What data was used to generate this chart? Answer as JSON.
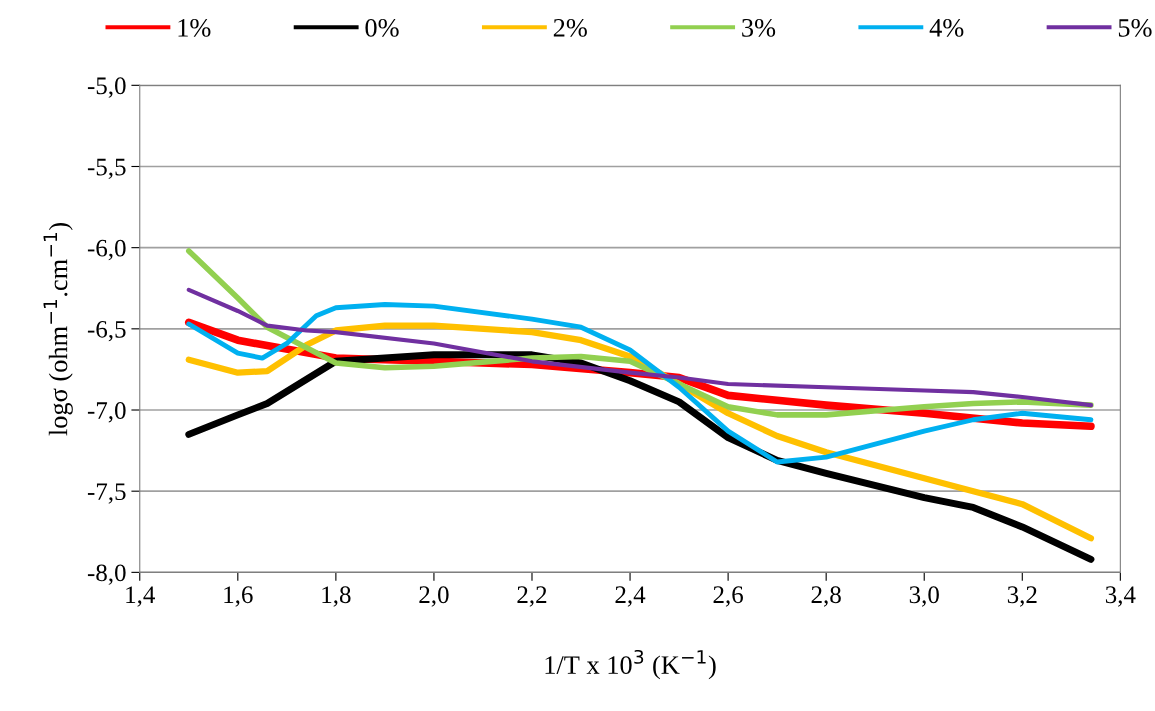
{
  "chart_data": {
    "type": "line",
    "xlabel": "1/T x 10$^{3}$ (K$^{−1}$)",
    "ylabel": "logσ (ohm$^{−1}$.cm$^{−1}$)",
    "xlim": [
      1.4,
      3.4
    ],
    "ylim": [
      -8.0,
      -5.0
    ],
    "xticks": [
      {
        "value": 1.4,
        "label": "1,4"
      },
      {
        "value": 1.6,
        "label": "1,6"
      },
      {
        "value": 1.8,
        "label": "1,8"
      },
      {
        "value": 2.0,
        "label": "2,0"
      },
      {
        "value": 2.2,
        "label": "2,2"
      },
      {
        "value": 2.4,
        "label": "2,4"
      },
      {
        "value": 2.6,
        "label": "2,6"
      },
      {
        "value": 2.8,
        "label": "2,8"
      },
      {
        "value": 3.0,
        "label": "3,0"
      },
      {
        "value": 3.2,
        "label": "3,2"
      },
      {
        "value": 3.4,
        "label": "3,4"
      }
    ],
    "yticks": [
      {
        "value": -8.0,
        "label": "-8,0"
      },
      {
        "value": -7.5,
        "label": "-7,5"
      },
      {
        "value": -7.0,
        "label": "-7,0"
      },
      {
        "value": -6.5,
        "label": "-6,5"
      },
      {
        "value": -6.0,
        "label": "-6,0"
      },
      {
        "value": -5.5,
        "label": "-5,5"
      },
      {
        "value": -5.0,
        "label": "-5,0"
      }
    ],
    "grid": "y",
    "legend": "top",
    "marker": "none",
    "line_style": "solid",
    "series": [
      {
        "name": "1%",
        "color": "#ff0000",
        "x": [
          1.5,
          1.6,
          1.8,
          2.0,
          2.2,
          2.4,
          2.5,
          2.6,
          2.8,
          3.0,
          3.2,
          3.34
        ],
        "values": [
          -6.46,
          -6.57,
          -6.68,
          -6.7,
          -6.72,
          -6.77,
          -6.8,
          -6.91,
          -6.97,
          -7.02,
          -7.08,
          -7.1
        ]
      },
      {
        "name": "0%",
        "color": "#000000",
        "x": [
          1.5,
          1.6,
          1.66,
          1.8,
          2.0,
          2.2,
          2.3,
          2.4,
          2.5,
          2.6,
          2.7,
          2.8,
          3.0,
          3.1,
          3.2,
          3.34
        ],
        "values": [
          -7.15,
          -7.03,
          -6.96,
          -6.7,
          -6.66,
          -6.66,
          -6.71,
          -6.82,
          -6.95,
          -7.17,
          -7.31,
          -7.39,
          -7.54,
          -7.6,
          -7.72,
          -7.92
        ]
      },
      {
        "name": "2%",
        "color": "#ffc000",
        "x": [
          1.5,
          1.6,
          1.66,
          1.74,
          1.8,
          1.9,
          2.0,
          2.2,
          2.3,
          2.4,
          2.5,
          2.6,
          2.7,
          2.8,
          3.0,
          3.1,
          3.2,
          3.34
        ],
        "values": [
          -6.69,
          -6.77,
          -6.76,
          -6.6,
          -6.51,
          -6.48,
          -6.48,
          -6.52,
          -6.57,
          -6.67,
          -6.84,
          -7.02,
          -7.16,
          -7.26,
          -7.42,
          -7.5,
          -7.58,
          -7.79
        ]
      },
      {
        "name": "3%",
        "color": "#92d050",
        "x": [
          1.5,
          1.6,
          1.66,
          1.8,
          1.9,
          2.0,
          2.2,
          2.3,
          2.4,
          2.5,
          2.6,
          2.7,
          2.8,
          3.0,
          3.1,
          3.2,
          3.34
        ],
        "values": [
          -6.02,
          -6.31,
          -6.49,
          -6.71,
          -6.74,
          -6.73,
          -6.68,
          -6.67,
          -6.7,
          -6.84,
          -6.98,
          -7.03,
          -7.03,
          -6.98,
          -6.96,
          -6.95,
          -6.97
        ]
      },
      {
        "name": "4%",
        "color": "#00b0f0",
        "x": [
          1.5,
          1.6,
          1.65,
          1.7,
          1.76,
          1.8,
          1.9,
          2.0,
          2.2,
          2.3,
          2.4,
          2.5,
          2.6,
          2.7,
          2.8,
          3.0,
          3.1,
          3.2,
          3.34
        ],
        "values": [
          -6.47,
          -6.65,
          -6.68,
          -6.59,
          -6.42,
          -6.37,
          -6.35,
          -6.36,
          -6.44,
          -6.49,
          -6.63,
          -6.86,
          -7.13,
          -7.32,
          -7.29,
          -7.13,
          -7.06,
          -7.02,
          -7.06
        ]
      },
      {
        "name": "5%",
        "color": "#7030a0",
        "x": [
          1.5,
          1.6,
          1.66,
          1.74,
          1.8,
          2.0,
          2.2,
          2.4,
          2.5,
          2.6,
          2.8,
          3.0,
          3.1,
          3.2,
          3.34
        ],
        "values": [
          -6.26,
          -6.39,
          -6.48,
          -6.51,
          -6.52,
          -6.59,
          -6.7,
          -6.77,
          -6.8,
          -6.84,
          -6.86,
          -6.88,
          -6.89,
          -6.92,
          -6.97
        ]
      }
    ]
  }
}
